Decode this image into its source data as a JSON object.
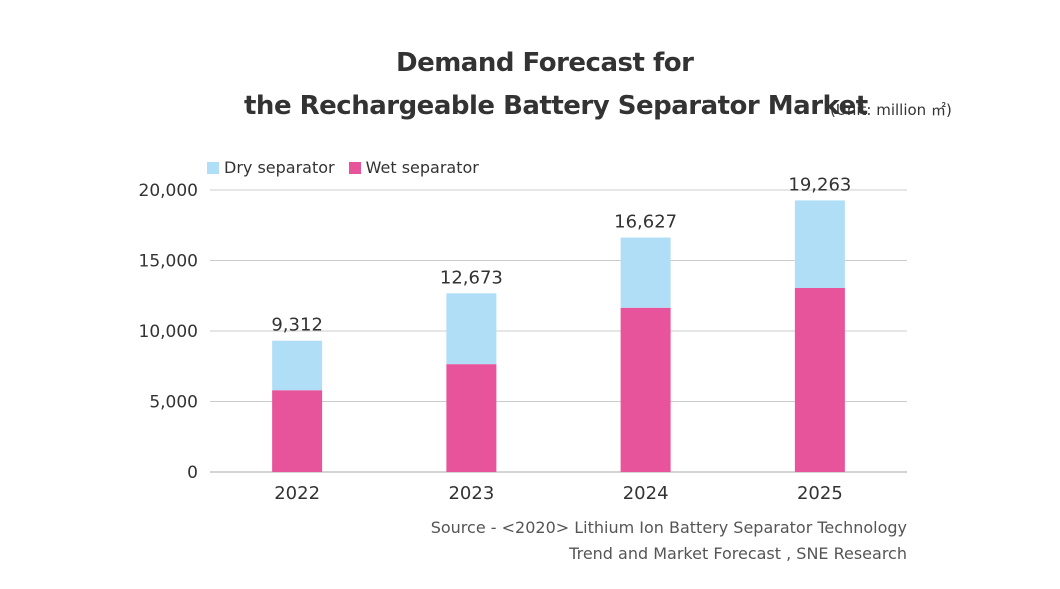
{
  "title": {
    "line1": "Demand Forecast for",
    "line2": "the Rechargeable Battery Separator Market",
    "unit": "(Unit: million ㎡)"
  },
  "legend": {
    "dry": "Dry separator",
    "wet": "Wet separator"
  },
  "colors": {
    "dry": "#b1def7",
    "wet": "#e8549b",
    "grid": "#cccccc",
    "title_highlight": "#f6c4dc"
  },
  "source": {
    "line1": "Source - <2020> Lithium Ion Battery Separator Technology",
    "line2": "Trend and Market Forecast , SNE Research"
  },
  "chart_data": {
    "type": "bar",
    "stacked": true,
    "categories": [
      "2022",
      "2023",
      "2024",
      "2025"
    ],
    "series": [
      {
        "name": "Wet separator",
        "values": [
          5800,
          7650,
          11650,
          13050
        ]
      },
      {
        "name": "Dry separator",
        "values": [
          3512,
          5023,
          4977,
          6213
        ]
      }
    ],
    "totals": [
      9312,
      12673,
      16627,
      19263
    ],
    "total_labels": [
      "9,312",
      "12,673",
      "16,627",
      "19,263"
    ],
    "ylim": [
      0,
      20000
    ],
    "yticks": [
      0,
      5000,
      10000,
      15000,
      20000
    ],
    "ytick_labels": [
      "0",
      "5,000",
      "10,000",
      "15,000",
      "20,000"
    ],
    "grid": true,
    "legend_position": "top-left"
  }
}
